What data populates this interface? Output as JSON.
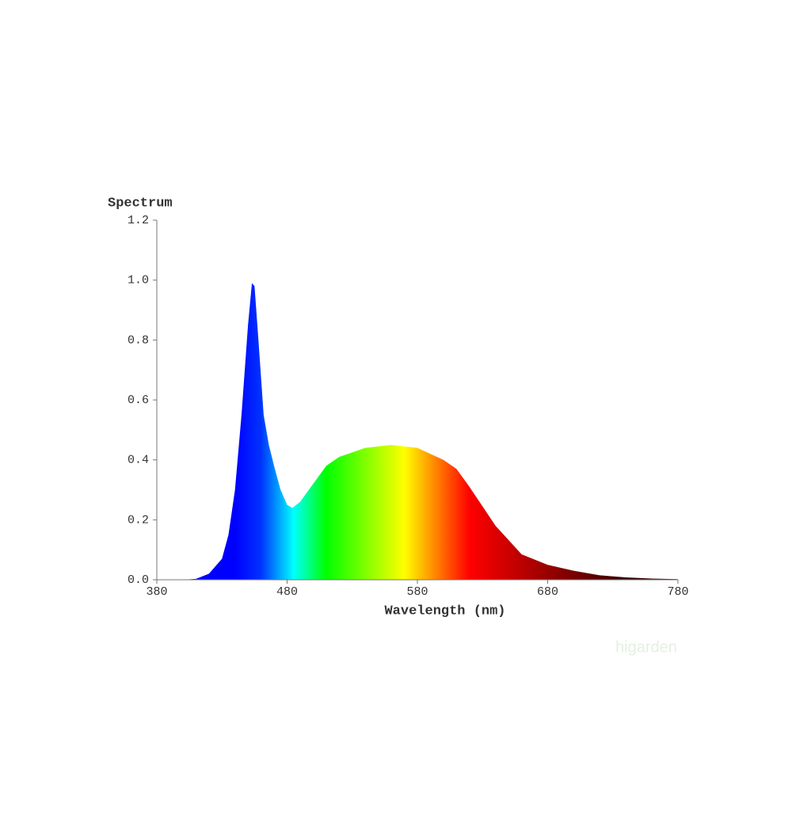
{
  "chart_data": {
    "type": "area",
    "y_label": "Spectrum",
    "x_label": "Wavelength (nm)",
    "watermark": "higarden",
    "x": [
      380,
      400,
      410,
      420,
      430,
      435,
      440,
      445,
      450,
      453,
      455,
      458,
      462,
      466,
      470,
      475,
      480,
      484,
      490,
      495,
      500,
      510,
      520,
      540,
      560,
      580,
      600,
      610,
      620,
      640,
      660,
      680,
      700,
      720,
      740,
      760,
      780
    ],
    "values": [
      0,
      0,
      0.003,
      0.02,
      0.07,
      0.15,
      0.3,
      0.55,
      0.85,
      0.99,
      0.98,
      0.8,
      0.55,
      0.45,
      0.38,
      0.3,
      0.25,
      0.24,
      0.26,
      0.29,
      0.32,
      0.38,
      0.41,
      0.44,
      0.45,
      0.44,
      0.4,
      0.37,
      0.31,
      0.18,
      0.085,
      0.05,
      0.03,
      0.015,
      0.008,
      0.004,
      0.002
    ],
    "xlim": [
      380,
      780
    ],
    "ylim": [
      0,
      1.2
    ],
    "xticks": [
      380,
      480,
      580,
      680,
      780
    ],
    "yticks": [
      {
        "value": 0,
        "label": "0.0"
      },
      0.2,
      0.4,
      0.6,
      0.8,
      {
        "value": 1,
        "label": "1.0"
      },
      1.2
    ],
    "gradient": [
      {
        "at": 440,
        "color": "#0000ff"
      },
      {
        "at": 460,
        "color": "#0033ff"
      },
      {
        "at": 485,
        "color": "#00ffff"
      },
      {
        "at": 510,
        "color": "#00ff00"
      },
      {
        "at": 540,
        "color": "#80ff00"
      },
      {
        "at": 570,
        "color": "#ffff00"
      },
      {
        "at": 590,
        "color": "#ff9900"
      },
      {
        "at": 620,
        "color": "#ff0000"
      },
      {
        "at": 680,
        "color": "#990000"
      },
      {
        "at": 740,
        "color": "#330000"
      }
    ]
  }
}
